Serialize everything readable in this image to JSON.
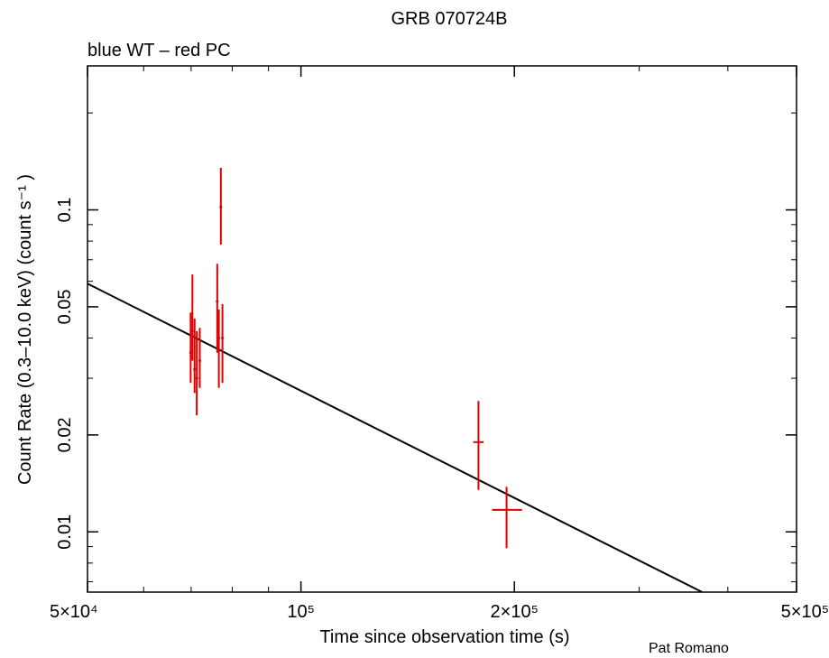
{
  "chart_data": {
    "type": "scatter",
    "title": "GRB 070724B",
    "subtitle": "blue WT – red PC",
    "xlabel": "Time since observation time (s)",
    "ylabel": "Count Rate (0.3–10.0 keV) (count s⁻¹ )",
    "credit": "Pat Romano",
    "x_scale": "log",
    "y_scale": "log",
    "xlim": [
      50000,
      500000
    ],
    "ylim": [
      0.0065,
      0.28
    ],
    "x_ticks": [
      {
        "value": 50000,
        "label": "5×10⁴"
      },
      {
        "value": 100000,
        "label": "10⁵"
      },
      {
        "value": 200000,
        "label": "2×10⁵"
      },
      {
        "value": 500000,
        "label": "5×10⁵"
      }
    ],
    "y_ticks": [
      {
        "value": 0.01,
        "label": "0.01"
      },
      {
        "value": 0.02,
        "label": "0.02"
      },
      {
        "value": 0.05,
        "label": "0.05"
      },
      {
        "value": 0.1,
        "label": "0.1"
      }
    ],
    "grid": false,
    "series": [
      {
        "name": "PC",
        "color": "#e00000",
        "points": [
          {
            "x": 69900,
            "y": 0.036,
            "ylo": 0.029,
            "yhi": 0.048
          },
          {
            "x": 70300,
            "y": 0.042,
            "ylo": 0.034,
            "yhi": 0.063
          },
          {
            "x": 70800,
            "y": 0.032,
            "ylo": 0.027,
            "yhi": 0.046
          },
          {
            "x": 71300,
            "y": 0.03,
            "ylo": 0.023,
            "yhi": 0.042
          },
          {
            "x": 72000,
            "y": 0.034,
            "ylo": 0.028,
            "yhi": 0.043
          },
          {
            "x": 76200,
            "y": 0.052,
            "ylo": 0.036,
            "yhi": 0.068
          },
          {
            "x": 76600,
            "y": 0.04,
            "ylo": 0.028,
            "yhi": 0.049
          },
          {
            "x": 77100,
            "y": 0.102,
            "ylo": 0.078,
            "yhi": 0.135
          },
          {
            "x": 77500,
            "y": 0.04,
            "ylo": 0.029,
            "yhi": 0.051
          },
          {
            "x": 178000,
            "y": 0.019,
            "ylo": 0.0135,
            "yhi": 0.0255,
            "xlo": 175000,
            "xhi": 181000
          },
          {
            "x": 195000,
            "y": 0.0117,
            "ylo": 0.0089,
            "yhi": 0.0138,
            "xlo": 186000,
            "xhi": 205000
          }
        ]
      }
    ],
    "fit_line": {
      "color": "#000000",
      "points": [
        [
          50000,
          0.059
        ],
        [
          368000,
          0.0065
        ]
      ]
    }
  }
}
